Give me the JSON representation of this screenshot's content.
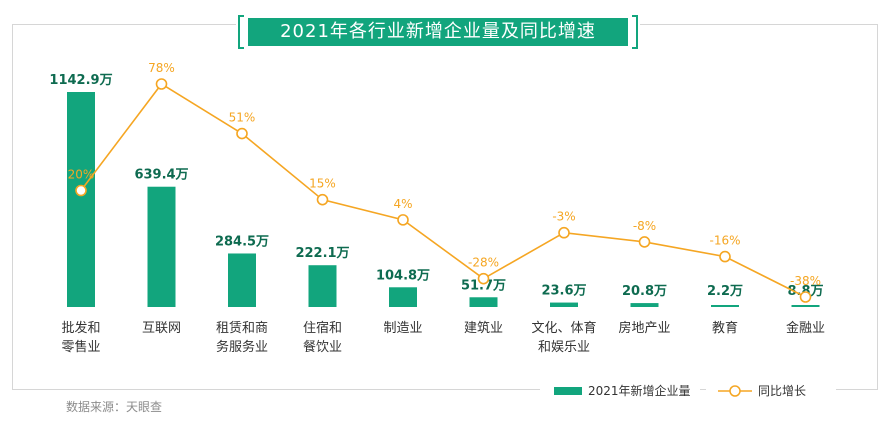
{
  "chart_data": {
    "type": "bar",
    "title": "2021年各行业新增企业量及同比增速",
    "categories": [
      [
        "批发和",
        "零售业"
      ],
      [
        "互联网"
      ],
      [
        "租赁和商",
        "务服务业"
      ],
      [
        "住宿和",
        "餐饮业"
      ],
      [
        "制造业"
      ],
      [
        "建筑业"
      ],
      [
        "文化、体育",
        "和娱乐业"
      ],
      [
        "房地产业"
      ],
      [
        "教育"
      ],
      [
        "金融业"
      ]
    ],
    "series": [
      {
        "name": "2021年新增企业量",
        "type": "bar",
        "unit": "万",
        "values": [
          1142.9,
          639.4,
          284.5,
          222.1,
          104.8,
          51.7,
          23.6,
          20.8,
          2.2,
          8.8
        ],
        "labels": [
          "1142.9万",
          "639.4万",
          "284.5万",
          "222.1万",
          "104.8万",
          "51.7万",
          "23.6万",
          "20.8万",
          "2.2万",
          "8.8万"
        ]
      },
      {
        "name": "同比增长",
        "type": "line",
        "unit": "%",
        "values": [
          20,
          78,
          51,
          15,
          4,
          -28,
          -3,
          -8,
          -16,
          -38
        ],
        "labels": [
          "20%",
          "78%",
          "51%",
          "15%",
          "4%",
          "-28%",
          "-3%",
          "-8%",
          "-16%",
          "-38%"
        ]
      }
    ],
    "ylim_bar": [
      0,
      1142.9
    ],
    "ylim_line": [
      -38,
      78
    ]
  },
  "colors": {
    "bar": "#12a57d",
    "line": "#f5a623",
    "bar_label": "#0e6b50",
    "axis_label": "#333333"
  },
  "source": "数据来源：天眼查"
}
